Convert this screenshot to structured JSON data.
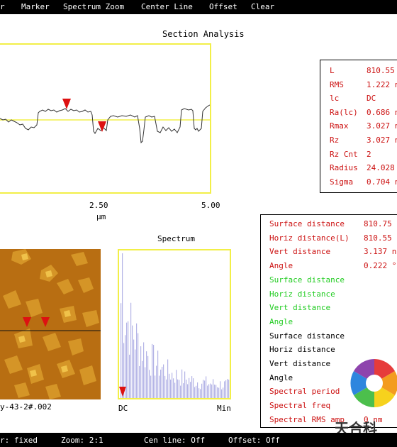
{
  "menu": {
    "items": [
      "r",
      "Marker",
      "Spectrum Zoom",
      "Center Line",
      "Offset",
      "Clear"
    ]
  },
  "section": {
    "title": "Section Analysis",
    "x_ticks": [
      "2.50",
      "5.00"
    ],
    "x_unit": "μm"
  },
  "stats": [
    {
      "label": "L",
      "value": "810.55"
    },
    {
      "label": "RMS",
      "value": "1.222 n"
    },
    {
      "label": "lc",
      "value": "DC"
    },
    {
      "label": "Ra(lc)",
      "value": "0.686 n"
    },
    {
      "label": "Rmax",
      "value": "3.027 n"
    },
    {
      "label": "Rz",
      "value": "3.027 n"
    },
    {
      "label": "Rz Cnt",
      "value": "2"
    },
    {
      "label": "Radius",
      "value": "24.028"
    },
    {
      "label": "Sigma",
      "value": "0.704 n"
    }
  ],
  "measurements": [
    {
      "label": "Surface distance",
      "value": "810.75 r",
      "color": "red"
    },
    {
      "label": "Horiz distance(L)",
      "value": "810.55 r",
      "color": "red"
    },
    {
      "label": "Vert distance",
      "value": "3.137 n",
      "color": "red"
    },
    {
      "label": "Angle",
      "value": "0.222 °",
      "color": "red"
    },
    {
      "label": "Surface distance",
      "value": "",
      "color": "green"
    },
    {
      "label": "Horiz distance",
      "value": "",
      "color": "green"
    },
    {
      "label": "Vert distance",
      "value": "",
      "color": "green"
    },
    {
      "label": "Angle",
      "value": "",
      "color": "green"
    },
    {
      "label": "Surface distance",
      "value": "",
      "color": "black"
    },
    {
      "label": "Horiz distance",
      "value": "",
      "color": "black"
    },
    {
      "label": "Vert distance",
      "value": "",
      "color": "black"
    },
    {
      "label": "Angle",
      "value": "",
      "color": "black"
    },
    {
      "label": "Spectral period",
      "value": "",
      "color": "red"
    },
    {
      "label": "Spectral freq",
      "value": "",
      "color": "red"
    },
    {
      "label": "Spectral RMS amp",
      "value": "0 nm",
      "color": "red"
    }
  ],
  "image": {
    "filename": "y-43-2#.002"
  },
  "spectrum": {
    "title": "Spectrum",
    "left_label": "DC",
    "right_label": "Min"
  },
  "status": {
    "items": [
      "r: fixed",
      "Zoom: 2:1",
      "Cen line: Off",
      "Offset: Off"
    ]
  },
  "watermark": {
    "text": "天合科"
  },
  "colors": {
    "plot_border": "#f2ef48",
    "marker_red": "#dd1111",
    "measure_red": "#cc1111",
    "measure_green": "#22cc22",
    "spectrum_bars": "#b4b4e6",
    "afm_background": "#b86e12"
  }
}
